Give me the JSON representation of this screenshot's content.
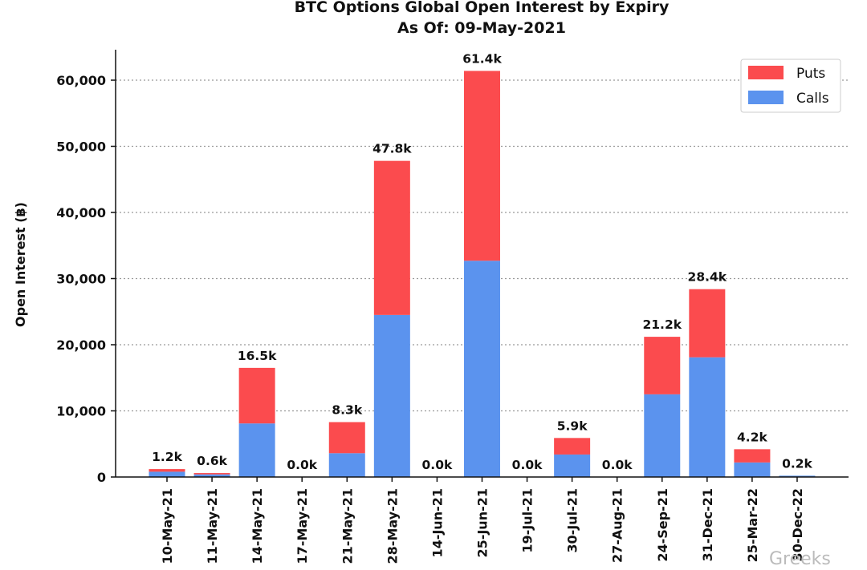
{
  "chart_data": {
    "type": "bar",
    "stacked": true,
    "title": "BTC Options Global Open Interest by Expiry",
    "subtitle": "As Of: 09-May-2021",
    "xlabel": "",
    "ylabel": "Open Interest (฿)",
    "ylim": [
      0,
      64500
    ],
    "yticks": [
      0,
      10000,
      20000,
      30000,
      40000,
      50000,
      60000
    ],
    "ytick_labels": [
      "0",
      "10,000",
      "20,000",
      "30,000",
      "40,000",
      "50,000",
      "60,000"
    ],
    "grid": "horizontal dotted",
    "legend_position": "top-right",
    "categories": [
      "10-May-21",
      "11-May-21",
      "14-May-21",
      "17-May-21",
      "21-May-21",
      "28-May-21",
      "14-Jun-21",
      "25-Jun-21",
      "19-Jul-21",
      "30-Jul-21",
      "27-Aug-21",
      "24-Sep-21",
      "31-Dec-21",
      "25-Mar-22",
      "30-Dec-22"
    ],
    "series": [
      {
        "name": "Calls",
        "color": "#5b93ee",
        "values": [
          800,
          400,
          8100,
          0,
          3600,
          24500,
          0,
          32700,
          0,
          3400,
          0,
          12500,
          18100,
          2200,
          200
        ]
      },
      {
        "name": "Puts",
        "color": "#fb4b4e",
        "values": [
          400,
          200,
          8400,
          0,
          4700,
          23300,
          0,
          28700,
          0,
          2500,
          0,
          8700,
          10300,
          2000,
          0
        ]
      }
    ],
    "legend": [
      "Puts",
      "Calls"
    ],
    "data_labels": [
      "1.2k",
      "0.6k",
      "16.5k",
      "0.0k",
      "8.3k",
      "47.8k",
      "0.0k",
      "61.4k",
      "0.0k",
      "5.9k",
      "0.0k",
      "21.2k",
      "28.4k",
      "4.2k",
      "0.2k"
    ]
  },
  "watermark": "Greeks"
}
